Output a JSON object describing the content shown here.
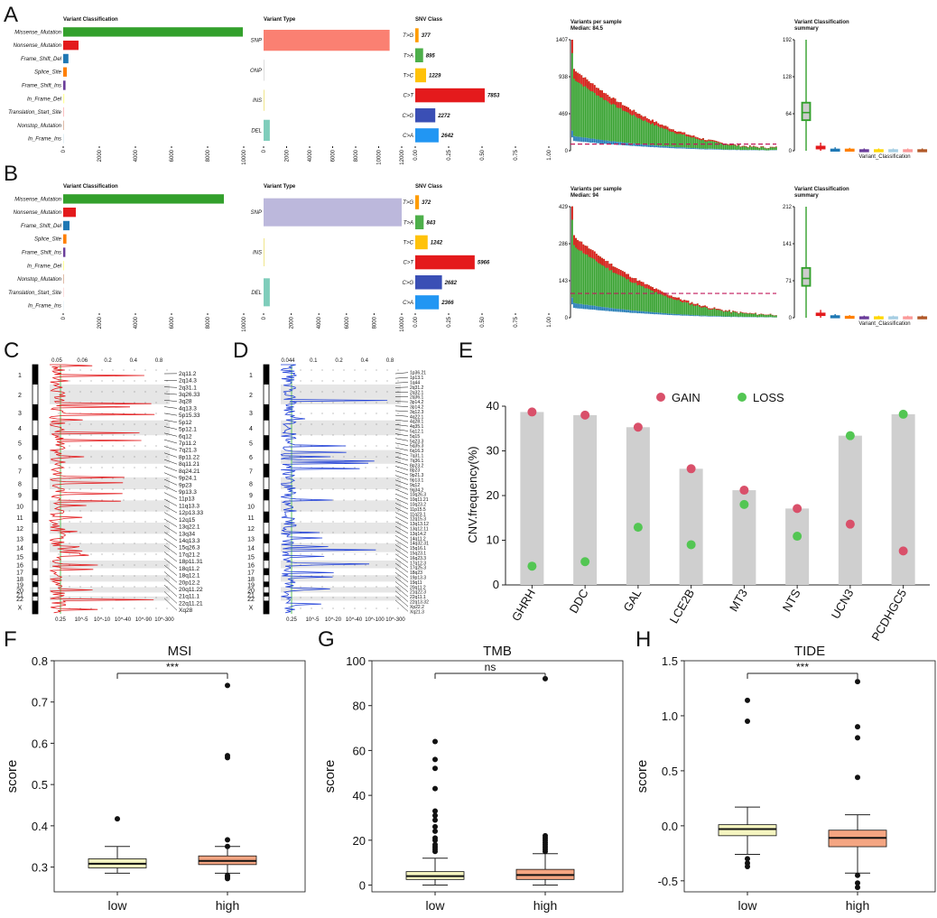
{
  "panel_labels": [
    "A",
    "B",
    "C",
    "D",
    "E",
    "F",
    "G",
    "H"
  ],
  "chart_data": [
    {
      "id": "A",
      "type": "bar",
      "classification": {
        "title": "Variant Classification",
        "categories": [
          "Missense_Mutation",
          "Nonsense_Mutation",
          "Frame_Shift_Del",
          "Splice_Site",
          "Frame_Shift_Ins",
          "In_Frame_Del",
          "Translation_Start_Site",
          "Nonstop_Mutation",
          "In_Frame_Ins"
        ],
        "values": [
          9950,
          850,
          290,
          200,
          130,
          60,
          30,
          20,
          15
        ],
        "colors": [
          "#33a02c",
          "#e31a1c",
          "#1f78b4",
          "#ff7f00",
          "#6a3d9a",
          "#ffff99",
          "#fb9a99",
          "#b15928",
          "#a6cee3"
        ],
        "ticks": [
          "0",
          "2000",
          "4000",
          "6000",
          "8000",
          "10000"
        ],
        "xlim": [
          0,
          10000
        ]
      },
      "variant_type": {
        "title": "Variant Type",
        "categories": [
          "SNP",
          "ONP",
          "INS",
          "DEL"
        ],
        "values": [
          10950,
          10,
          25,
          540
        ],
        "colors": [
          "#fa8072",
          "#dddddd",
          "#f0e68c",
          "#7fcdbb"
        ],
        "ticks": [
          "0",
          "2000",
          "4000",
          "6000",
          "8000",
          "10000",
          "12000"
        ],
        "xlim": [
          0,
          12000
        ]
      },
      "snv_class": {
        "title": "SNV Class",
        "categories": [
          "T>G",
          "T>A",
          "T>C",
          "C>T",
          "C>G",
          "C>A"
        ],
        "values": [
          377,
          895,
          1229,
          7853,
          2272,
          2642
        ],
        "fractions": [
          0.025,
          0.059,
          0.081,
          0.52,
          0.15,
          0.175
        ],
        "colors": [
          "#ff9c00",
          "#4daf4a",
          "#ffc20a",
          "#e41a1c",
          "#3a4fb5",
          "#2196f3"
        ],
        "ticks": [
          "0.00",
          "0.25",
          "0.50",
          "0.75",
          "1.00"
        ]
      },
      "per_sample": {
        "title": "Variants per sample",
        "subtitle": "Median: 84.5",
        "yticks": [
          "0",
          "469",
          "938",
          "1407"
        ],
        "ymax": 1407,
        "median": 84.5,
        "n": 110
      },
      "summary": {
        "title": "Variant Classification summary",
        "xlabel": "Variant_Classification",
        "yticks": [
          "0",
          "64",
          "128",
          "192"
        ],
        "ymax": 192,
        "boxes": [
          {
            "q1": 52,
            "med": 66,
            "q3": 84,
            "lo": 0,
            "hi": 192,
            "color": "#33a02c"
          },
          {
            "q1": 3,
            "med": 5,
            "q3": 8,
            "lo": 0,
            "hi": 14,
            "color": "#e31a1c"
          },
          {
            "q1": 1,
            "med": 2,
            "q3": 3,
            "lo": 0,
            "hi": 6,
            "color": "#1f78b4"
          },
          {
            "q1": 1,
            "med": 2,
            "q3": 3,
            "lo": 0,
            "hi": 5,
            "color": "#ff7f00"
          },
          {
            "q1": 0,
            "med": 1,
            "q3": 2,
            "lo": 0,
            "hi": 4,
            "color": "#6a3d9a"
          },
          {
            "q1": 0,
            "med": 1,
            "q3": 2,
            "lo": 0,
            "hi": 4,
            "color": "#ffd700"
          },
          {
            "q1": 0,
            "med": 1,
            "q3": 2,
            "lo": 0,
            "hi": 4,
            "color": "#a6cee3"
          },
          {
            "q1": 0,
            "med": 1,
            "q3": 2,
            "lo": 0,
            "hi": 4,
            "color": "#fb9a99"
          },
          {
            "q1": 0,
            "med": 1,
            "q3": 2,
            "lo": 0,
            "hi": 4,
            "color": "#b15928"
          }
        ]
      }
    },
    {
      "id": "B",
      "type": "bar",
      "classification": {
        "title": "Variant Classification",
        "categories": [
          "Missense_Mutation",
          "Nonsense_Mutation",
          "Frame_Shift_Del",
          "Splice_Site",
          "Frame_Shift_Ins",
          "In_Frame_Del",
          "Nonstop_Mutation",
          "Translation_Start_Site",
          "In_Frame_Ins"
        ],
        "values": [
          8900,
          700,
          350,
          180,
          120,
          50,
          20,
          15,
          10
        ],
        "colors": [
          "#33a02c",
          "#e31a1c",
          "#1f78b4",
          "#ff7f00",
          "#6a3d9a",
          "#ffff99",
          "#b15928",
          "#fb9a99",
          "#a6cee3"
        ],
        "ticks": [
          "0",
          "2000",
          "4000",
          "6000",
          "8000",
          "10000"
        ],
        "xlim": [
          0,
          10000
        ]
      },
      "variant_type": {
        "title": "Variant Type",
        "categories": [
          "SNP",
          "INS",
          "DEL"
        ],
        "values": [
          10000,
          40,
          450
        ],
        "colors": [
          "#bcb8dc",
          "#f0e68c",
          "#7fcdbb"
        ],
        "ticks": [
          "0",
          "2000",
          "4000",
          "6000",
          "8000",
          "10000"
        ],
        "xlim": [
          0,
          10000
        ]
      },
      "snv_class": {
        "title": "SNV Class",
        "categories": [
          "T>G",
          "T>A",
          "T>C",
          "C>T",
          "C>G",
          "C>A"
        ],
        "values": [
          372,
          843,
          1242,
          5966,
          2682,
          2366
        ],
        "fractions": [
          0.028,
          0.063,
          0.093,
          0.445,
          0.2,
          0.177
        ],
        "colors": [
          "#ff9c00",
          "#4daf4a",
          "#ffc20a",
          "#e41a1c",
          "#3a4fb5",
          "#2196f3"
        ],
        "ticks": [
          "0.00",
          "0.25",
          "0.50",
          "0.75",
          "1.00"
        ]
      },
      "per_sample": {
        "title": "Variants per sample",
        "subtitle": "Median: 94",
        "yticks": [
          "0",
          "143",
          "286",
          "429"
        ],
        "ymax": 429,
        "median": 94,
        "n": 110
      },
      "summary": {
        "title": "Variant Classification summary",
        "xlabel": "Variant_Classification",
        "yticks": [
          "0",
          "71",
          "141",
          "212"
        ],
        "ymax": 212,
        "boxes": [
          {
            "q1": 60,
            "med": 75,
            "q3": 96,
            "lo": 0,
            "hi": 212,
            "color": "#33a02c"
          },
          {
            "q1": 4,
            "med": 6,
            "q3": 9,
            "lo": 0,
            "hi": 15,
            "color": "#e31a1c"
          },
          {
            "q1": 1,
            "med": 2,
            "q3": 4,
            "lo": 0,
            "hi": 7,
            "color": "#1f78b4"
          },
          {
            "q1": 1,
            "med": 2,
            "q3": 3,
            "lo": 0,
            "hi": 5,
            "color": "#ff7f00"
          },
          {
            "q1": 0,
            "med": 1,
            "q3": 2,
            "lo": 0,
            "hi": 4,
            "color": "#6a3d9a"
          },
          {
            "q1": 0,
            "med": 1,
            "q3": 2,
            "lo": 0,
            "hi": 4,
            "color": "#ffd700"
          },
          {
            "q1": 0,
            "med": 1,
            "q3": 2,
            "lo": 0,
            "hi": 4,
            "color": "#a6cee3"
          },
          {
            "q1": 0,
            "med": 1,
            "q3": 2,
            "lo": 0,
            "hi": 4,
            "color": "#fb9a99"
          },
          {
            "q1": 0,
            "med": 1,
            "q3": 2,
            "lo": 0,
            "hi": 4,
            "color": "#b15928"
          }
        ]
      }
    },
    {
      "id": "C",
      "type": "bar",
      "series_color": "#e31a1c",
      "chromosomes": [
        "1",
        "2",
        "3",
        "4",
        "5",
        "6",
        "7",
        "8",
        "9",
        "10",
        "11",
        "12",
        "13",
        "14",
        "15",
        "16",
        "17",
        "18",
        "19",
        "20",
        "21",
        "22",
        "X"
      ],
      "top_ticks": [
        "0.05",
        "0.06",
        "0.2",
        "0.4",
        "0.8"
      ],
      "bottom_ticks": [
        "0.25",
        "10^-5",
        "10^-10",
        "10^-40",
        "10^-90",
        "10^-300"
      ],
      "peaks": [
        "2q11.2",
        "2q14.3",
        "2q31.1",
        "3q26.33",
        "3q28",
        "4q13.3",
        "5p15.33",
        "5p12",
        "5p12.1",
        "6q12",
        "7p11.2",
        "7q21.3",
        "8p11.22",
        "8q11.21",
        "8q24.21",
        "9p24.1",
        "9p23",
        "9p13.3",
        "11p13",
        "11q13.3",
        "12p13.33",
        "12q15",
        "13q22.1",
        "13q34",
        "14q13.3",
        "15q26.3",
        "17q21.2",
        "18p11.31",
        "18q11.2",
        "18q12.1",
        "20p12.2",
        "20q11.22",
        "21q11.1",
        "22q11.21",
        "Xq28"
      ]
    },
    {
      "id": "D",
      "type": "bar",
      "series_color": "#1f3fd8",
      "chromosomes": [
        "1",
        "2",
        "3",
        "4",
        "5",
        "6",
        "7",
        "8",
        "9",
        "10",
        "11",
        "12",
        "13",
        "14",
        "15",
        "16",
        "17",
        "18",
        "19",
        "20",
        "21",
        "22",
        "X"
      ],
      "top_ticks": [
        "0.044",
        "0.1",
        "0.2",
        "0.4",
        "0.8"
      ],
      "bottom_ticks": [
        "0.25",
        "10^-5",
        "10^-20",
        "10^-40",
        "10^-100",
        "10^-300"
      ],
      "peaks": [
        "1p36.21",
        "1p13.1",
        "1q44",
        "2q31.2",
        "2q32.1",
        "2q36.1",
        "3p14.2",
        "3p14.2",
        "3q12.3",
        "4q22.1",
        "4q28.1",
        "4q35.1",
        "5q12.1",
        "5q15",
        "5q23.3",
        "5q35.3",
        "6q16.3",
        "7q31.1",
        "7q36.1",
        "8p23.2",
        "8p23",
        "9p21.3",
        "9p13.1",
        "9q12",
        "9q34.2",
        "10q26.3",
        "10q11.21",
        "10q23.2",
        "11p15.5",
        "11q23.1",
        "12q15.3",
        "13q13.12",
        "13q12.11",
        "13q14.2",
        "14q11.2",
        "14q32.31",
        "15q16.1",
        "15q23.1",
        "16q23.3",
        "17q12.3",
        "17q25.3",
        "18q23",
        "19p13.3",
        "19q11",
        "20q11.2",
        "21q22.3",
        "22q11.1",
        "22q13.32",
        "Xp22.2",
        "Xq21.3"
      ]
    },
    {
      "id": "E",
      "type": "bar",
      "ylabel": "CNV.frequency(%)",
      "ylim": [
        0,
        40
      ],
      "yticks": [
        "0",
        "10",
        "20",
        "30",
        "40"
      ],
      "legend": [
        "GAIN",
        "LOSS"
      ],
      "gain_color": "#d9506a",
      "loss_color": "#53c653",
      "categories": [
        "GHRH",
        "DDC",
        "GAL",
        "LCE2B",
        "MT3",
        "NTS",
        "UCN3",
        "PCDHGC5"
      ],
      "gain": [
        38.7,
        38.0,
        35.3,
        26.0,
        21.2,
        17.1,
        13.6,
        7.6
      ],
      "loss": [
        4.2,
        5.2,
        12.9,
        9.0,
        18.0,
        10.9,
        33.4,
        38.2
      ]
    },
    {
      "id": "F",
      "type": "scatter",
      "title": "MSI",
      "ylabel": "score",
      "ylim": [
        0.24,
        0.8
      ],
      "yticks": [
        "0.3",
        "0.4",
        "0.5",
        "0.6",
        "0.7",
        "0.8"
      ],
      "significance": "***",
      "groups": [
        {
          "name": "low",
          "q1": 0.298,
          "med": 0.308,
          "q3": 0.32,
          "wlo": 0.285,
          "whi": 0.35,
          "outliers": [
            0.417
          ],
          "color": "#f5f5c0"
        },
        {
          "name": "high",
          "q1": 0.306,
          "med": 0.315,
          "q3": 0.327,
          "wlo": 0.285,
          "whi": 0.35,
          "outliers": [
            0.74,
            0.57,
            0.565,
            0.366,
            0.35,
            0.28,
            0.276,
            0.272
          ],
          "color": "#f4a582"
        }
      ]
    },
    {
      "id": "G",
      "type": "scatter",
      "title": "TMB",
      "ylabel": "score",
      "ylim": [
        -3,
        100
      ],
      "yticks": [
        "0",
        "20",
        "40",
        "60",
        "80",
        "100"
      ],
      "significance": "ns",
      "groups": [
        {
          "name": "low",
          "q1": 2.5,
          "med": 4,
          "q3": 6,
          "wlo": 0,
          "whi": 12,
          "outliers": [
            64,
            56,
            52,
            43,
            33,
            31,
            29,
            26,
            24,
            21,
            20,
            18,
            17,
            16,
            15
          ],
          "color": "#f5f5c0"
        },
        {
          "name": "high",
          "q1": 2.5,
          "med": 4.5,
          "q3": 7,
          "wlo": 0,
          "whi": 14,
          "outliers": [
            92,
            22,
            21,
            20,
            19,
            18,
            17,
            16,
            15
          ],
          "color": "#f4a582"
        }
      ]
    },
    {
      "id": "H",
      "type": "scatter",
      "title": "TIDE",
      "ylabel": "score",
      "ylim": [
        -0.6,
        1.5
      ],
      "yticks": [
        "-0.5",
        "0.0",
        "0.5",
        "1.0",
        "1.5"
      ],
      "significance": "***",
      "groups": [
        {
          "name": "low",
          "q1": -0.09,
          "med": -0.03,
          "q3": 0.01,
          "wlo": -0.26,
          "whi": 0.17,
          "outliers": [
            1.14,
            0.95,
            -0.3,
            -0.34,
            -0.37
          ],
          "color": "#f5f5c0"
        },
        {
          "name": "high",
          "q1": -0.19,
          "med": -0.11,
          "q3": -0.04,
          "wlo": -0.43,
          "whi": 0.1,
          "outliers": [
            1.31,
            0.9,
            0.8,
            0.44,
            -0.45,
            -0.52,
            -0.56
          ],
          "color": "#f4a582"
        }
      ]
    }
  ]
}
